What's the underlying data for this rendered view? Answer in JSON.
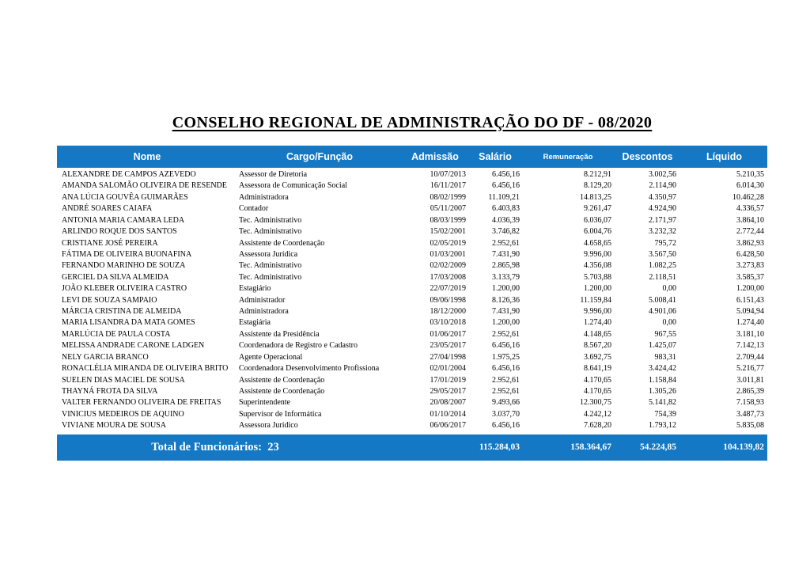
{
  "title": "CONSELHO REGIONAL DE ADMINISTRAÇÃO DO DF - 08/2020",
  "colors": {
    "header_bg": "#1478C4",
    "header_text": "#FFFFFF",
    "body_text": "#000000"
  },
  "table": {
    "columns": [
      {
        "key": "nome",
        "label": "Nome"
      },
      {
        "key": "cargo",
        "label": "Cargo/Função"
      },
      {
        "key": "admissao",
        "label": "Admissão"
      },
      {
        "key": "salario",
        "label": "Salário"
      },
      {
        "key": "remuneracao",
        "label": "Remuneração"
      },
      {
        "key": "descontos",
        "label": "Descontos"
      },
      {
        "key": "liquido",
        "label": "Líquido"
      }
    ],
    "rows": [
      [
        "ALEXANDRE DE CAMPOS AZEVEDO",
        "Assessor de Diretoria",
        "10/07/2013",
        "6.456,16",
        "8.212,91",
        "3.002,56",
        "5.210,35"
      ],
      [
        "AMANDA SALOMÃO OLIVEIRA DE RESENDE",
        "Assessora de Comunicação Social",
        "16/11/2017",
        "6.456,16",
        "8.129,20",
        "2.114,90",
        "6.014,30"
      ],
      [
        "ANA LÚCIA GOUVÊA GUIMARÃES",
        "Administradora",
        "08/02/1999",
        "11.109,21",
        "14.813,25",
        "4.350,97",
        "10.462,28"
      ],
      [
        "ANDRÉ SOARES CAIAFA",
        "Contador",
        "05/11/2007",
        "6.403,83",
        "9.261,47",
        "4.924,90",
        "4.336,57"
      ],
      [
        "ANTONIA MARIA CAMARA LEDA",
        "Tec. Administrativo",
        "08/03/1999",
        "4.036,39",
        "6.036,07",
        "2.171,97",
        "3.864,10"
      ],
      [
        "ARLINDO ROQUE DOS SANTOS",
        "Tec. Administrativo",
        "15/02/2001",
        "3.746,82",
        "6.004,76",
        "3.232,32",
        "2.772,44"
      ],
      [
        "CRISTIANE JOSÉ PEREIRA",
        "Assistente de Coordenação",
        "02/05/2019",
        "2.952,61",
        "4.658,65",
        "795,72",
        "3.862,93"
      ],
      [
        "FÁTIMA DE OLIVEIRA BUONAFINA",
        "Assessora Jurídica",
        "01/03/2001",
        "7.431,90",
        "9.996,00",
        "3.567,50",
        "6.428,50"
      ],
      [
        "FERNANDO MARINHO DE SOUZA",
        "Tec. Administrativo",
        "02/02/2009",
        "2.865,98",
        "4.356,08",
        "1.082,25",
        "3.273,83"
      ],
      [
        "GERCIEL DA SILVA ALMEIDA",
        "Tec. Administrativo",
        "17/03/2008",
        "3.133,79",
        "5.703,88",
        "2.118,51",
        "3.585,37"
      ],
      [
        "JOÃO KLEBER OLIVEIRA CASTRO",
        "Estagiário",
        "22/07/2019",
        "1.200,00",
        "1.200,00",
        "0,00",
        "1.200,00"
      ],
      [
        "LEVI DE SOUZA SAMPAIO",
        "Administrador",
        "09/06/1998",
        "8.126,36",
        "11.159,84",
        "5.008,41",
        "6.151,43"
      ],
      [
        "MÁRCIA CRISTINA DE ALMEIDA",
        "Administradora",
        "18/12/2000",
        "7.431,90",
        "9.996,00",
        "4.901,06",
        "5.094,94"
      ],
      [
        "MARIA LISANDRA DA MATA GOMES",
        "Estagiária",
        "03/10/2018",
        "1.200,00",
        "1.274,40",
        "0,00",
        "1.274,40"
      ],
      [
        "MARLÚCIA DE PAULA COSTA",
        "Assistente da Presidência",
        "01/06/2017",
        "2.952,61",
        "4.148,65",
        "967,55",
        "3.181,10"
      ],
      [
        "MELISSA ANDRADE CARONE LADGEN",
        "Coordenadora de Registro e Cadastro",
        "23/05/2017",
        "6.456,16",
        "8.567,20",
        "1.425,07",
        "7.142,13"
      ],
      [
        "NELY GARCIA BRANCO",
        "Agente Operacional",
        "27/04/1998",
        "1.975,25",
        "3.692,75",
        "983,31",
        "2.709,44"
      ],
      [
        "RONACLÉLIA MIRANDA DE OLIVEIRA BRITO",
        "Coordenadora Desenvolvimento Profissiona",
        "02/01/2004",
        "6.456,16",
        "8.641,19",
        "3.424,42",
        "5.216,77"
      ],
      [
        "SUELEN DIAS MACIEL DE SOUSA",
        "Assistente de Coordenação",
        "17/01/2019",
        "2.952,61",
        "4.170,65",
        "1.158,84",
        "3.011,81"
      ],
      [
        "THAYNÁ FROTA DA SILVA",
        "Assistente de Coordenação",
        "29/05/2017",
        "2.952,61",
        "4.170,65",
        "1.305,26",
        "2.865,39"
      ],
      [
        "VALTER FERNANDO OLIVEIRA DE FREITAS",
        "Superintendente",
        "20/08/2007",
        "9.493,66",
        "12.300,75",
        "5.141,82",
        "7.158,93"
      ],
      [
        "VINICIUS MEDEIROS DE AQUINO",
        "Supervisor de Informática",
        "01/10/2014",
        "3.037,70",
        "4.242,12",
        "754,39",
        "3.487,73"
      ],
      [
        "VIVIANE MOURA DE SOUSA",
        "Assessora Jurídico",
        "06/06/2017",
        "6.456,16",
        "7.628,20",
        "1.793,12",
        "5.835,08"
      ]
    ],
    "footer": {
      "label": "Total de Funcionários:",
      "count": "23",
      "totals": [
        "115.284,03",
        "158.364,67",
        "54.224,85",
        "104.139,82"
      ]
    }
  }
}
